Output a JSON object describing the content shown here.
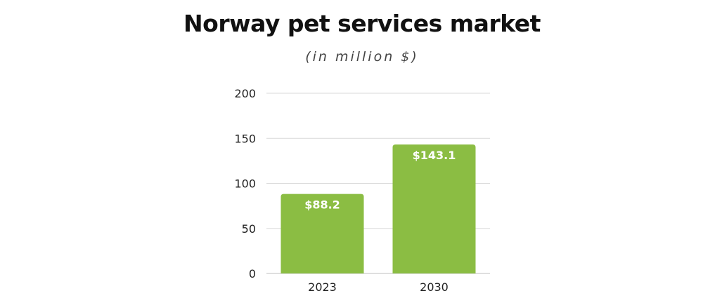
{
  "chart_data": {
    "type": "bar",
    "title": "Norway pet services market",
    "subtitle": "(in million $)",
    "categories": [
      "2023",
      "2030"
    ],
    "values": [
      88.2,
      143.1
    ],
    "value_labels": [
      "$88.2",
      "$143.1"
    ],
    "ylim": [
      0,
      200
    ],
    "yticks": [
      0,
      50,
      100,
      150,
      200
    ],
    "grid": true,
    "xlabel": "",
    "ylabel": "",
    "bar_color": "#8bbd43",
    "grid_color": "#d9d9d9"
  }
}
